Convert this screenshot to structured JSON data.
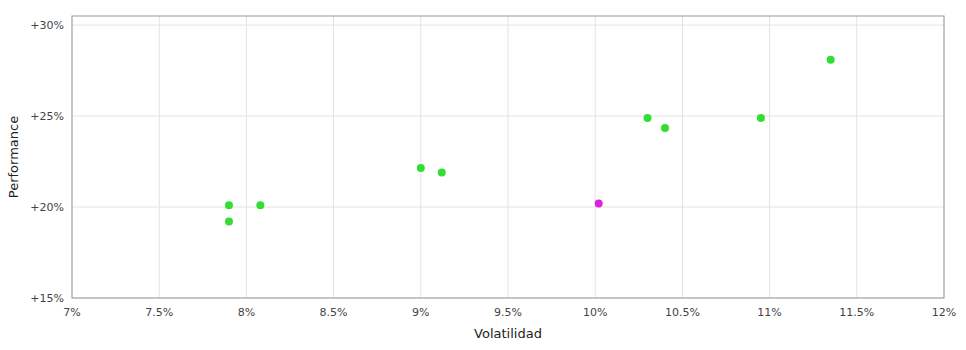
{
  "chart_data": {
    "type": "scatter",
    "xlabel": "Volatilidad",
    "ylabel": "Performance",
    "xlim": [
      0.07,
      0.12
    ],
    "ylim": [
      0.15,
      0.305
    ],
    "xticks": [
      {
        "value": 0.07,
        "label": "7%"
      },
      {
        "value": 0.075,
        "label": "7.5%"
      },
      {
        "value": 0.08,
        "label": "8%"
      },
      {
        "value": 0.085,
        "label": "8.5%"
      },
      {
        "value": 0.09,
        "label": "9%"
      },
      {
        "value": 0.095,
        "label": "9.5%"
      },
      {
        "value": 0.1,
        "label": "10%"
      },
      {
        "value": 0.105,
        "label": "10.5%"
      },
      {
        "value": 0.11,
        "label": "11%"
      },
      {
        "value": 0.115,
        "label": "11.5%"
      },
      {
        "value": 0.12,
        "label": "12%"
      }
    ],
    "yticks": [
      {
        "value": 0.15,
        "label": "+15%"
      },
      {
        "value": 0.2,
        "label": "+20%"
      },
      {
        "value": 0.25,
        "label": "+25%"
      },
      {
        "value": 0.3,
        "label": "+30%"
      }
    ],
    "grid": true,
    "series": [
      {
        "color": "#33dd33",
        "x": [
          0.079,
          0.0808,
          0.079,
          0.09,
          0.0912,
          0.103,
          0.104,
          0.1095,
          0.1135
        ],
        "values": [
          0.201,
          0.201,
          0.192,
          0.2215,
          0.219,
          0.249,
          0.2435,
          0.249,
          0.281
        ]
      },
      {
        "color": "#dd22dd",
        "x": [
          0.1002
        ],
        "values": [
          0.202
        ]
      }
    ]
  }
}
